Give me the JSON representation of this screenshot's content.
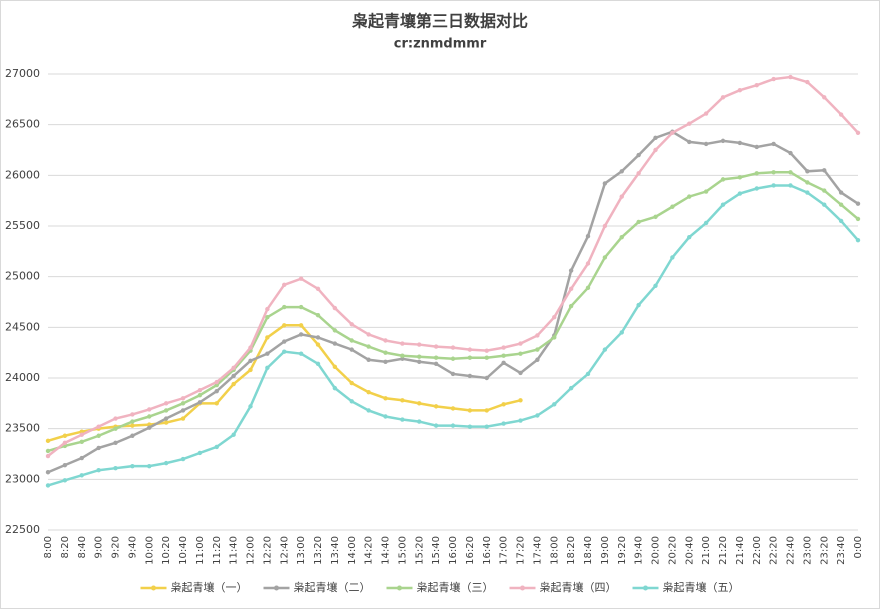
{
  "chart_data": {
    "type": "line",
    "title": "枭起青壤第三日数据对比",
    "subtitle": "cr:znmdmmr",
    "categories": [
      "8:00",
      "8:20",
      "8:40",
      "9:00",
      "9:20",
      "9:40",
      "10:00",
      "10:20",
      "10:40",
      "11:00",
      "11:20",
      "11:40",
      "12:00",
      "12:20",
      "12:40",
      "13:00",
      "13:20",
      "13:40",
      "14:00",
      "14:20",
      "14:40",
      "15:00",
      "15:20",
      "15:40",
      "16:00",
      "16:20",
      "16:40",
      "17:00",
      "17:20",
      "17:40",
      "18:00",
      "18:20",
      "18:40",
      "19:00",
      "19:20",
      "19:40",
      "20:00",
      "20:20",
      "20:40",
      "21:00",
      "21:20",
      "21:40",
      "22:00",
      "22:20",
      "22:40",
      "23:00",
      "23:20",
      "23:40",
      "0:00"
    ],
    "series": [
      {
        "name": "枭起青壤（一）",
        "color": "#f2d04a",
        "values": [
          23380,
          23430,
          23470,
          23500,
          23520,
          23530,
          23540,
          23560,
          23600,
          23750,
          23750,
          23940,
          24080,
          24400,
          24520,
          24520,
          24330,
          24110,
          23950,
          23860,
          23800,
          23780,
          23750,
          23720,
          23700,
          23680,
          23680,
          23740,
          23780,
          null,
          null,
          null,
          null,
          null,
          null,
          null,
          null,
          null,
          null,
          null,
          null,
          null,
          null,
          null,
          null,
          null,
          null,
          null,
          null
        ]
      },
      {
        "name": "枭起青壤（二）",
        "color": "#a3a3a3",
        "values": [
          23070,
          23140,
          23210,
          23310,
          23360,
          23430,
          23510,
          23600,
          23680,
          23760,
          23870,
          24020,
          24170,
          24240,
          24360,
          24430,
          24400,
          24340,
          24280,
          24180,
          24160,
          24190,
          24160,
          24140,
          24040,
          24020,
          24000,
          24150,
          24050,
          24180,
          24420,
          25060,
          25400,
          25920,
          26040,
          26200,
          26370,
          26430,
          26330,
          26310,
          26340,
          26320,
          26280,
          26310,
          26220,
          26040,
          26050,
          25830,
          25720
        ]
      },
      {
        "name": "枭起青壤（三）",
        "color": "#a9d48e",
        "values": [
          23280,
          23330,
          23370,
          23430,
          23500,
          23570,
          23620,
          23680,
          23750,
          23830,
          23930,
          24080,
          24270,
          24600,
          24700,
          24700,
          24620,
          24470,
          24370,
          24310,
          24250,
          24220,
          24210,
          24200,
          24190,
          24200,
          24200,
          24220,
          24240,
          24280,
          24400,
          24710,
          24890,
          25190,
          25390,
          25540,
          25590,
          25690,
          25790,
          25840,
          25960,
          25980,
          26020,
          26030,
          26030,
          25930,
          25850,
          25710,
          25570
        ]
      },
      {
        "name": "枭起青壤（四）",
        "color": "#f0b3c0",
        "values": [
          23230,
          23360,
          23440,
          23520,
          23600,
          23640,
          23690,
          23750,
          23800,
          23880,
          23960,
          24100,
          24300,
          24680,
          24920,
          24980,
          24880,
          24690,
          24530,
          24430,
          24370,
          24340,
          24330,
          24310,
          24300,
          24280,
          24270,
          24300,
          24340,
          24420,
          24600,
          24880,
          25130,
          25500,
          25790,
          26020,
          26250,
          26420,
          26510,
          26610,
          26770,
          26840,
          26890,
          26950,
          26970,
          26920,
          26770,
          26600,
          26420
        ]
      },
      {
        "name": "枭起青壤（五）",
        "color": "#7fd7d1",
        "values": [
          22940,
          22990,
          23040,
          23090,
          23110,
          23130,
          23130,
          23160,
          23200,
          23260,
          23320,
          23440,
          23720,
          24100,
          24260,
          24240,
          24140,
          23900,
          23770,
          23680,
          23620,
          23590,
          23570,
          23530,
          23530,
          23520,
          23520,
          23550,
          23580,
          23630,
          23740,
          23900,
          24040,
          24280,
          24450,
          24720,
          24910,
          25190,
          25390,
          25530,
          25710,
          25820,
          25870,
          25900,
          25900,
          25830,
          25710,
          25550,
          25360
        ]
      }
    ],
    "ylim": [
      22500,
      27000
    ],
    "yticks": [
      22500,
      23000,
      23500,
      24000,
      24500,
      25000,
      25500,
      26000,
      26500,
      27000
    ],
    "grid": true
  }
}
